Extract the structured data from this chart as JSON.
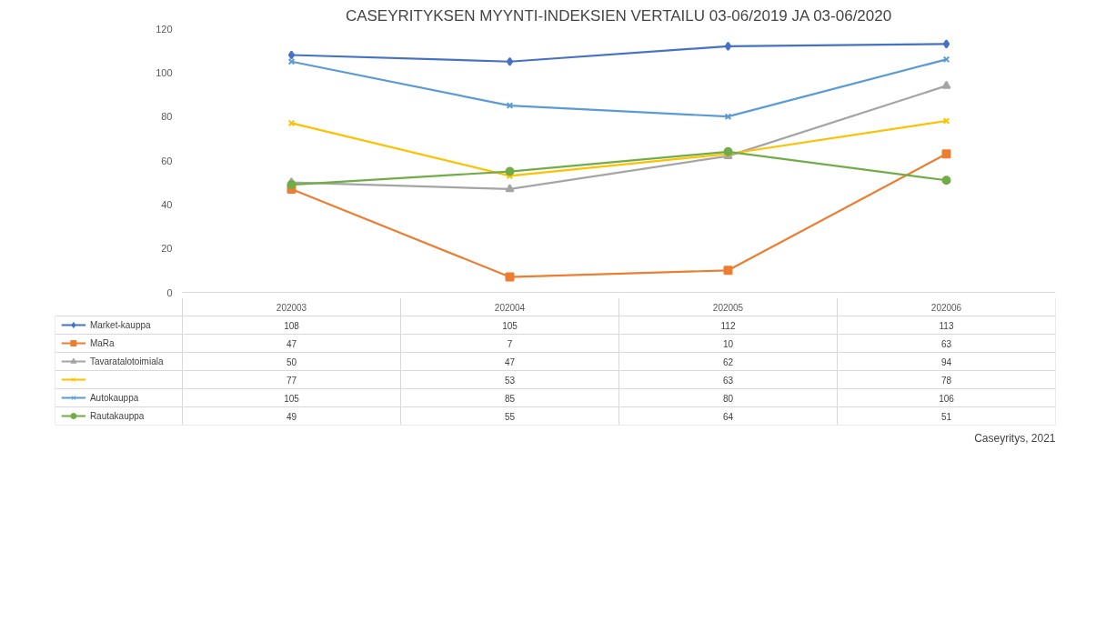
{
  "chart_data": {
    "type": "line",
    "title": "CASEYRITYKSEN MYYNTI-INDEKSIEN VERTAILU 03-06/2019 JA 03-06/2020",
    "categories": [
      "202003",
      "202004",
      "202005",
      "202006"
    ],
    "series": [
      {
        "name": "Market-kauppa",
        "color": "#4472c4",
        "marker": "diamond",
        "values": [
          108,
          105,
          112,
          113
        ]
      },
      {
        "name": "MaRa",
        "color": "#ed7d31",
        "marker": "square",
        "values": [
          47,
          7,
          10,
          63
        ]
      },
      {
        "name": "Tavaratalotoimiala",
        "color": "#a5a5a5",
        "marker": "triangle",
        "values": [
          50,
          47,
          62,
          94
        ]
      },
      {
        "color": "#ffc000",
        "marker": "cross",
        "values": [
          77,
          53,
          63,
          78
        ]
      },
      {
        "name": "Autokauppa",
        "color": "#5b9bd5",
        "marker": "cross",
        "values": [
          105,
          85,
          80,
          106
        ]
      },
      {
        "name": "Rautakauppa",
        "color": "#70ad47",
        "marker": "circle",
        "values": [
          49,
          55,
          64,
          51
        ]
      }
    ],
    "ylim": [
      0,
      120
    ],
    "yticks": [
      0,
      20,
      40,
      60,
      80,
      100,
      120
    ],
    "tick_labels": "y",
    "data_labels": true,
    "legend": "bottom",
    "annotations": [
      "Caseyritys, 2021"
    ]
  }
}
